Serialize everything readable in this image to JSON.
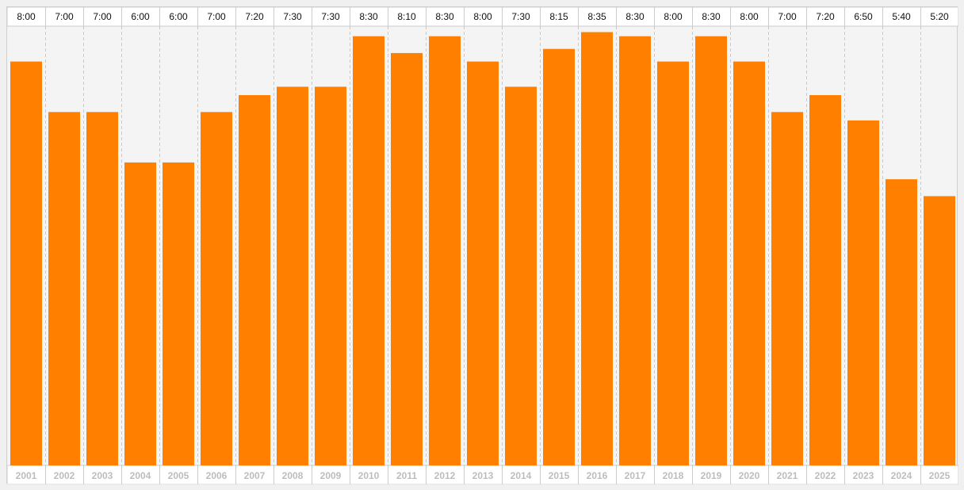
{
  "chart_data": {
    "type": "bar",
    "categories": [
      "2001",
      "2002",
      "2003",
      "2004",
      "2005",
      "2006",
      "2007",
      "2008",
      "2009",
      "2010",
      "2011",
      "2012",
      "2013",
      "2014",
      "2015",
      "2016",
      "2017",
      "2018",
      "2019",
      "2020",
      "2021",
      "2022",
      "2023",
      "2024",
      "2025"
    ],
    "value_labels": [
      "8:00",
      "7:00",
      "7:00",
      "6:00",
      "6:00",
      "7:00",
      "7:20",
      "7:30",
      "7:30",
      "8:30",
      "8:10",
      "8:30",
      "8:00",
      "7:30",
      "8:15",
      "8:35",
      "8:30",
      "8:00",
      "8:30",
      "8:00",
      "7:00",
      "7:20",
      "6:50",
      "5:40",
      "5:20"
    ],
    "values": [
      8.0,
      7.0,
      7.0,
      6.0,
      6.0,
      7.0,
      7.333,
      7.5,
      7.5,
      8.5,
      8.167,
      8.5,
      8.0,
      7.5,
      8.25,
      8.583,
      8.5,
      8.0,
      8.5,
      8.0,
      7.0,
      7.333,
      6.833,
      5.667,
      5.333
    ],
    "ylim": [
      0,
      8.7
    ],
    "grid": "vertical dashed separators",
    "bar_color": "#ff8000",
    "title": "",
    "xlabel": "",
    "ylabel": ""
  }
}
